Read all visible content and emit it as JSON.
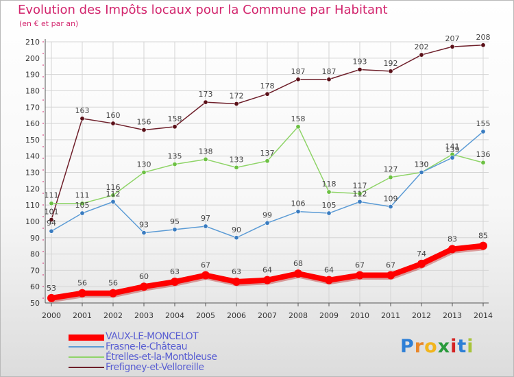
{
  "title": "Evolution des Impôts locaux pour la Commune par Habitant",
  "subtitle": "(en € et par an)",
  "logo": {
    "text": "Proxiti",
    "letters": [
      {
        "ch": "P",
        "color": "#2d7fd6"
      },
      {
        "ch": "r",
        "color": "#e8862a"
      },
      {
        "ch": "o",
        "color": "#f2b51c"
      },
      {
        "ch": "x",
        "color": "#2a9a3c"
      },
      {
        "ch": "i",
        "color": "#d42323"
      },
      {
        "ch": "t",
        "color": "#2d7fd6"
      },
      {
        "ch": "i",
        "color": "#a8c43a"
      }
    ]
  },
  "chart_data": {
    "type": "line",
    "title": "Evolution des Impôts locaux pour la Commune par Habitant",
    "ylabel": "(en € et par an)",
    "xlabel": "",
    "x": [
      2000,
      2001,
      2002,
      2003,
      2004,
      2005,
      2006,
      2007,
      2008,
      2009,
      2010,
      2011,
      2012,
      2013,
      2014
    ],
    "y_ticks": [
      50,
      60,
      70,
      80,
      90,
      100,
      110,
      120,
      130,
      140,
      150,
      160,
      170,
      180,
      190,
      200,
      210
    ],
    "ylim": [
      50,
      210
    ],
    "grid": true,
    "legend_position": "bottom-left",
    "series": [
      {
        "name": "Frefigney-et-Velloreille",
        "color": "#6e1f2a",
        "point_color": "#5a1018",
        "values": [
          101,
          163,
          160,
          156,
          158,
          173,
          172,
          178,
          187,
          187,
          193,
          192,
          202,
          207,
          208
        ],
        "labels": [
          "101",
          "163",
          "160",
          "156",
          "158",
          "173",
          "172",
          "178",
          "187",
          "187",
          "193",
          "192",
          "202",
          "207",
          "208"
        ]
      },
      {
        "name": "Étrelles-et-la-Montbleuse",
        "color": "#8fd468",
        "point_color": "#6cc043",
        "values": [
          111,
          111,
          116,
          130,
          135,
          138,
          133,
          137,
          158,
          118,
          117,
          127,
          130,
          141,
          136
        ],
        "labels": [
          "111",
          "111",
          "116",
          "130",
          "135",
          "138",
          "133",
          "137",
          "158",
          "118",
          "117",
          "127",
          "130",
          "141",
          "136"
        ]
      },
      {
        "name": "Frasne-le-Château",
        "color": "#5b9bd5",
        "point_color": "#3a7cc0",
        "values": [
          94,
          105,
          112,
          93,
          95,
          97,
          90,
          99,
          106,
          105,
          112,
          109,
          130,
          139,
          155
        ],
        "labels": [
          "94",
          "105",
          "112",
          "93",
          "95",
          "97",
          "90",
          "99",
          "106",
          "105",
          "112",
          "109",
          "130",
          "139",
          "155"
        ]
      },
      {
        "name": "VAUX-LE-MONCELOT",
        "color": "#ff0000",
        "point_color": "#ff0000",
        "values": [
          53,
          56,
          56,
          60,
          63,
          67,
          63,
          64,
          68,
          64,
          67,
          67,
          74,
          83,
          85
        ],
        "labels": [
          "53",
          "56",
          "56",
          "60",
          "63",
          "67",
          "63",
          "64",
          "68",
          "64",
          "67",
          "67",
          "74",
          "83",
          "85"
        ]
      }
    ],
    "legend": [
      {
        "name": "VAUX-LE-MONCELOT",
        "color": "#ff0000",
        "thick": true
      },
      {
        "name": "Frasne-le-Château",
        "color": "#5b9bd5",
        "thick": false
      },
      {
        "name": "Étrelles-et-la-Montbleuse",
        "color": "#8fd468",
        "thick": false
      },
      {
        "name": "Frefigney-et-Velloreille",
        "color": "#6e1f2a",
        "thick": false
      }
    ]
  }
}
